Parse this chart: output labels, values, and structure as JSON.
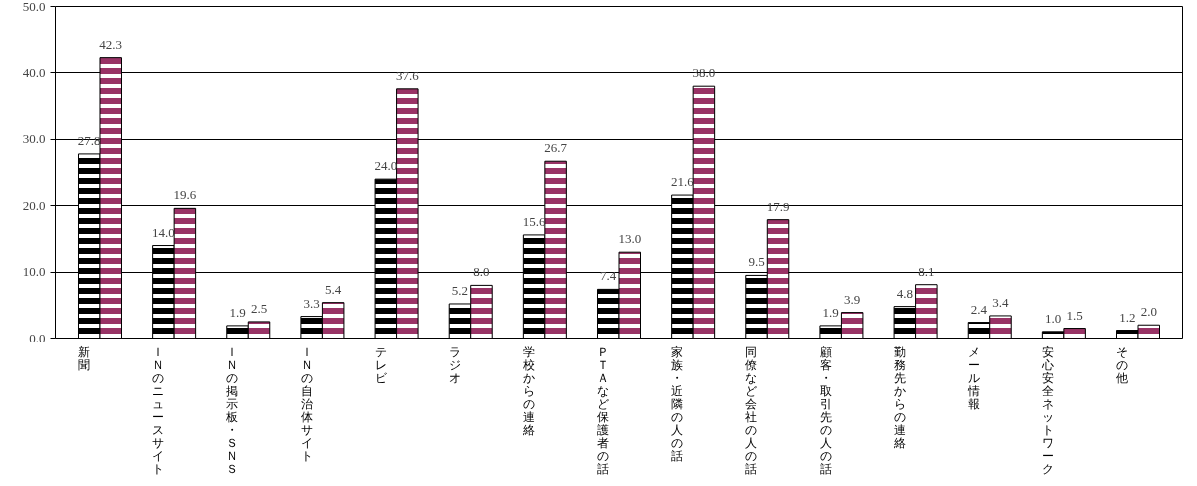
{
  "chart_data": {
    "type": "bar",
    "categories": [
      "新聞",
      "ＩＮのニュースサイト",
      "ＩＮの掲示板・ＳＮＳ",
      "ＩＮの自治体サイト",
      "テレビ",
      "ラジオ",
      "学校からの連絡",
      "ＰＴＡなど保護者の話",
      "家族・近隣の人の話",
      "同僚など会社の人の話",
      "顧客・取引先の人の話",
      "勤務先からの連絡",
      "メール情報",
      "安心安全ネットワーク",
      "その他"
    ],
    "series": [
      {
        "color": "#000000",
        "values": [
          27.8,
          14.0,
          1.9,
          3.3,
          24.0,
          5.2,
          15.6,
          7.4,
          21.6,
          9.5,
          1.9,
          4.8,
          2.4,
          1.0,
          1.2
        ],
        "value_labels": [
          "27.8",
          "14.0",
          "1.9",
          "3.3",
          "24.0",
          "5.2",
          "15.6",
          "7.4",
          "21.6",
          "9.5",
          "1.9",
          "4.8",
          "2.4",
          "1.0",
          "1.2"
        ]
      },
      {
        "color": "#993366",
        "values": [
          42.3,
          19.6,
          2.5,
          5.4,
          37.6,
          8.0,
          26.7,
          13.0,
          38.0,
          17.9,
          3.9,
          8.1,
          3.4,
          1.5,
          2.0
        ],
        "value_labels": [
          "42.3",
          "19.6",
          "2.5",
          "5.4",
          "37.6",
          "8.0",
          "26.7",
          "13.0",
          "38.0",
          "17.9",
          "3.9",
          "8.1",
          "3.4",
          "1.5",
          "2.0"
        ]
      }
    ],
    "ylim": [
      0,
      50
    ],
    "yticks": [
      {
        "value": 0,
        "label": "0.0"
      },
      {
        "value": 10,
        "label": "10.0"
      },
      {
        "value": 20,
        "label": "20.0"
      },
      {
        "value": 30,
        "label": "30.0"
      },
      {
        "value": 40,
        "label": "40.0"
      },
      {
        "value": 50,
        "label": "50.0"
      }
    ],
    "grid": "y"
  }
}
